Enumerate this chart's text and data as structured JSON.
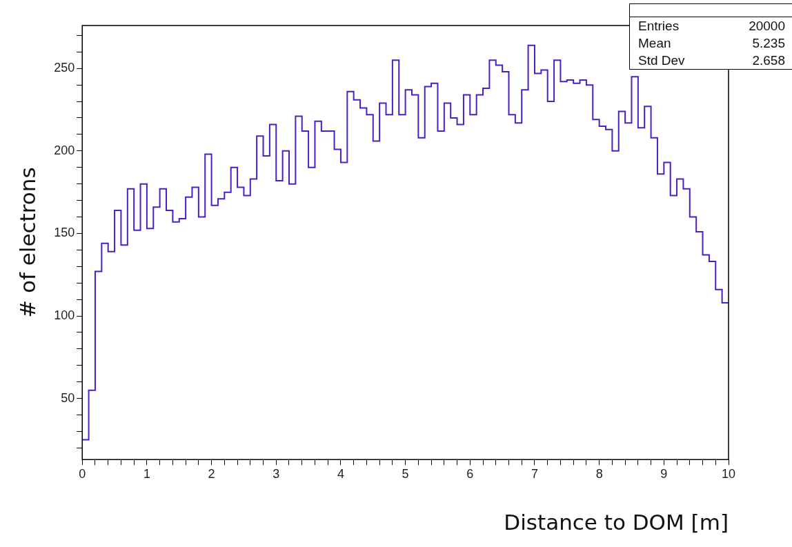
{
  "chart_data": {
    "type": "histogram",
    "xlabel": "Distance to DOM [m]",
    "ylabel": "# of electrons",
    "bins": [
      0,
      0.1,
      0.2,
      0.3,
      0.4,
      0.5,
      0.6,
      0.7,
      0.8,
      0.9,
      1,
      1.1,
      1.2,
      1.3,
      1.4,
      1.5,
      1.6,
      1.7,
      1.8,
      1.9,
      2,
      2.1,
      2.2,
      2.3,
      2.4,
      2.5,
      2.6,
      2.7,
      2.8,
      2.9,
      3,
      3.1,
      3.2,
      3.3,
      3.4,
      3.5,
      3.6,
      3.7,
      3.8,
      3.9,
      4,
      4.1,
      4.2,
      4.3,
      4.4,
      4.5,
      4.6,
      4.7,
      4.8,
      4.9,
      5,
      5.1,
      5.2,
      5.3,
      5.4,
      5.5,
      5.6,
      5.7,
      5.8,
      5.9,
      6,
      6.1,
      6.2,
      6.3,
      6.4,
      6.5,
      6.6,
      6.7,
      6.8,
      6.9,
      7,
      7.1,
      7.2,
      7.3,
      7.4,
      7.5,
      7.6,
      7.7,
      7.8,
      7.9,
      8,
      8.1,
      8.2,
      8.3,
      8.4,
      8.5,
      8.6,
      8.7,
      8.8,
      8.9,
      9,
      9.1,
      9.2,
      9.3,
      9.4,
      9.5,
      9.6,
      9.7,
      9.8,
      9.9,
      10
    ],
    "values": [
      25,
      55,
      127,
      144,
      139,
      164,
      143,
      177,
      152,
      180,
      153,
      166,
      177,
      164,
      157,
      159,
      172,
      178,
      160,
      198,
      167,
      171,
      175,
      190,
      178,
      173,
      183,
      209,
      197,
      216,
      182,
      200,
      180,
      221,
      212,
      190,
      218,
      212,
      212,
      201,
      193,
      236,
      231,
      226,
      222,
      206,
      229,
      222,
      255,
      222,
      237,
      234,
      208,
      239,
      241,
      212,
      229,
      220,
      216,
      234,
      222,
      234,
      238,
      255,
      252,
      248,
      222,
      217,
      237,
      264,
      247,
      249,
      230,
      255,
      242,
      243,
      241,
      243,
      240,
      219,
      215,
      213,
      200,
      224,
      217,
      245,
      214,
      227,
      208,
      186,
      193,
      173,
      183,
      177,
      160,
      151,
      137,
      133,
      116,
      108
    ],
    "color": "#4a1ec8",
    "xlim": [
      0,
      10
    ],
    "xticks": [
      0,
      {
        "value": 0.2,
        "label": null
      },
      {
        "value": 0.4,
        "label": null
      },
      {
        "value": 0.6,
        "label": null
      },
      {
        "value": 0.8,
        "label": null
      },
      1,
      {
        "value": 1.2,
        "label": null
      },
      {
        "value": 1.4,
        "label": null
      },
      {
        "value": 1.6,
        "label": null
      },
      {
        "value": 1.8,
        "label": null
      },
      2,
      {
        "value": 2.2,
        "label": null
      },
      {
        "value": 2.4,
        "label": null
      },
      {
        "value": 2.6,
        "label": null
      },
      {
        "value": 2.8,
        "label": null
      },
      3,
      {
        "value": 3.2,
        "label": null
      },
      {
        "value": 3.4,
        "label": null
      },
      {
        "value": 3.6,
        "label": null
      },
      {
        "value": 3.8,
        "label": null
      },
      4,
      {
        "value": 4.2,
        "label": null
      },
      {
        "value": 4.4,
        "label": null
      },
      {
        "value": 4.6,
        "label": null
      },
      {
        "value": 4.8,
        "label": null
      },
      5,
      {
        "value": 5.2,
        "label": null
      },
      {
        "value": 5.4,
        "label": null
      },
      {
        "value": 5.6,
        "label": null
      },
      {
        "value": 5.8,
        "label": null
      },
      6,
      {
        "value": 6.2,
        "label": null
      },
      {
        "value": 6.4,
        "label": null
      },
      {
        "value": 6.6,
        "label": null
      },
      {
        "value": 6.8,
        "label": null
      },
      7,
      {
        "value": 7.2,
        "label": null
      },
      {
        "value": 7.4,
        "label": null
      },
      {
        "value": 7.6,
        "label": null
      },
      {
        "value": 7.8,
        "label": null
      },
      8,
      {
        "value": 8.2,
        "label": null
      },
      {
        "value": 8.4,
        "label": null
      },
      {
        "value": 8.6,
        "label": null
      },
      {
        "value": 8.8,
        "label": null
      },
      9,
      {
        "value": 9.2,
        "label": null
      },
      {
        "value": 9.4,
        "label": null
      },
      {
        "value": 9.6,
        "label": null
      },
      {
        "value": 9.8,
        "label": null
      },
      10
    ],
    "ylim": [
      13,
      276
    ],
    "yticks": [
      {
        "value": 20,
        "label": null
      },
      {
        "value": 30,
        "label": null
      },
      {
        "value": 40,
        "label": null
      },
      50,
      {
        "value": 60,
        "label": null
      },
      {
        "value": 70,
        "label": null
      },
      {
        "value": 80,
        "label": null
      },
      {
        "value": 90,
        "label": null
      },
      100,
      {
        "value": 110,
        "label": null
      },
      {
        "value": 120,
        "label": null
      },
      {
        "value": 130,
        "label": null
      },
      {
        "value": 140,
        "label": null
      },
      150,
      {
        "value": 160,
        "label": null
      },
      {
        "value": 170,
        "label": null
      },
      {
        "value": 180,
        "label": null
      },
      {
        "value": 190,
        "label": null
      },
      200,
      {
        "value": 210,
        "label": null
      },
      {
        "value": 220,
        "label": null
      },
      {
        "value": 230,
        "label": null
      },
      {
        "value": 240,
        "label": null
      },
      250,
      {
        "value": 260,
        "label": null
      },
      {
        "value": 270,
        "label": null
      }
    ],
    "annotations": [
      "Entries",
      "20000",
      "Mean",
      "5.235",
      "Std Dev",
      "2.658"
    ]
  }
}
